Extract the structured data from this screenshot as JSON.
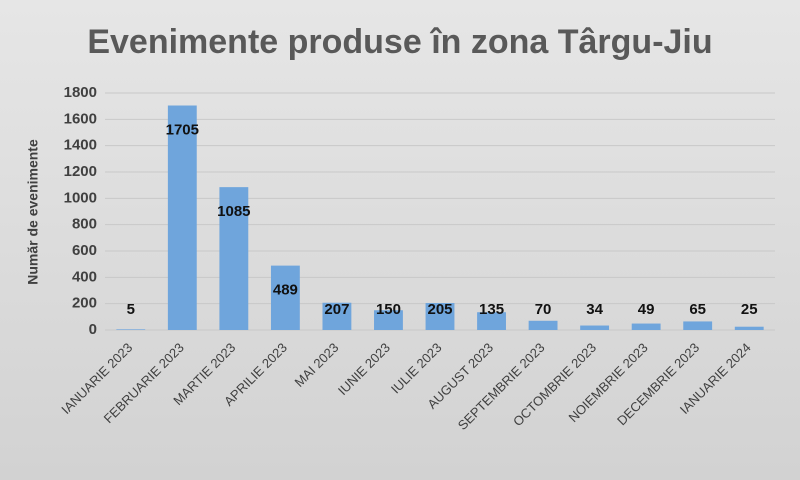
{
  "chart_data": {
    "type": "bar",
    "title": "Evenimente produse în zona Târgu-Jiu",
    "y_label": "Număr de evenimente",
    "categories": [
      "IANUARIE 2023",
      "FEBRUARIE 2023",
      "MARTIE 2023",
      "APRILIE 2023",
      "MAI 2023",
      "IUNIE 2023",
      "IULIE 2023",
      "AUGUST 2023",
      "SEPTEMBRIE 2023",
      "OCTOMBRIE 2023",
      "NOIEMBRIE 2023",
      "DECEMBRIE 2023",
      "IANUARIE 2024"
    ],
    "values": [
      5,
      1705,
      1085,
      489,
      207,
      150,
      205,
      135,
      70,
      34,
      49,
      65,
      25
    ],
    "color": "#6fa5dc",
    "ylim": [
      0,
      1800
    ],
    "yticks": [
      0,
      200,
      400,
      600,
      800,
      1000,
      1200,
      1400,
      1600,
      1800
    ],
    "grid": true
  }
}
